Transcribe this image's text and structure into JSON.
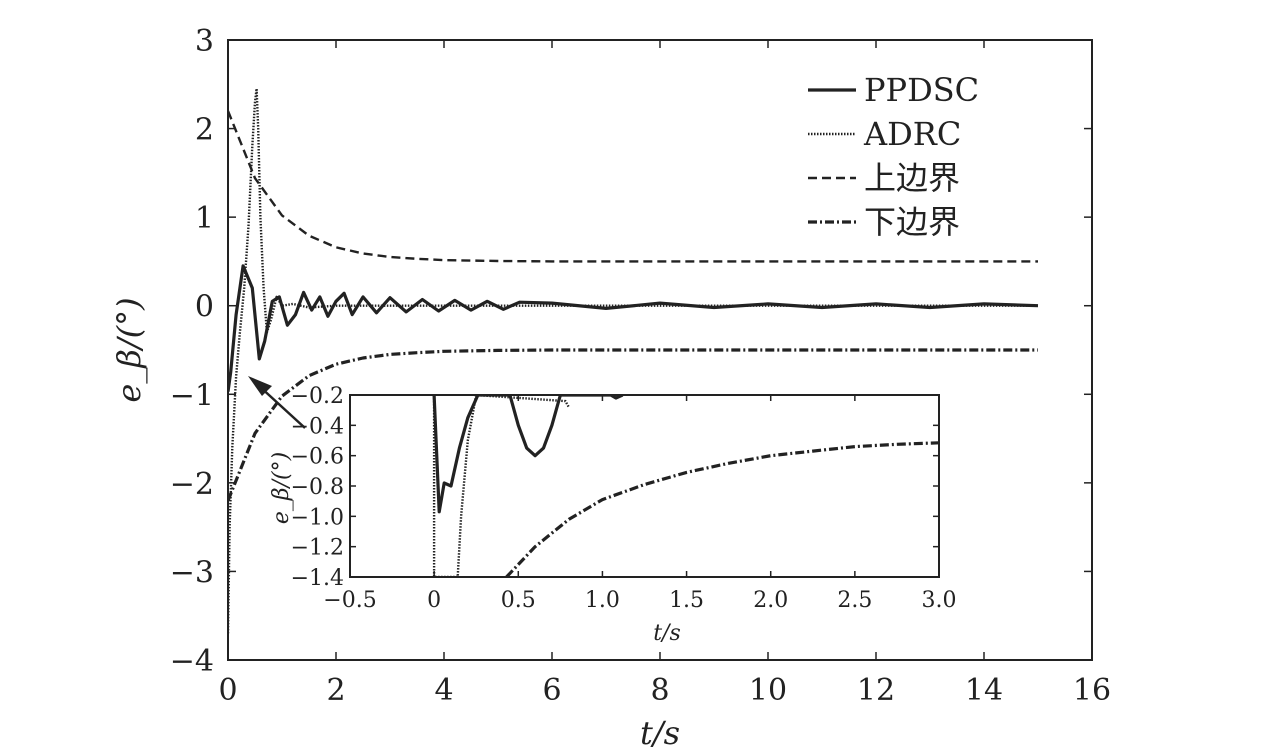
{
  "chart_data": [
    {
      "type": "line",
      "xlabel": "t/s",
      "ylabel": "e_β/(°)",
      "xlim": [
        0,
        16
      ],
      "ylim": [
        -4,
        3
      ],
      "xticks": [
        0,
        2,
        4,
        6,
        8,
        10,
        12,
        14,
        16
      ],
      "yticks": [
        -4,
        -3,
        -2,
        -1,
        0,
        1,
        2,
        3
      ],
      "xtick_labels": [
        "0",
        "2",
        "4",
        "6",
        "8",
        "10",
        "12",
        "14",
        "16"
      ],
      "ytick_labels": [
        "−4",
        "−3",
        "−2",
        "−1",
        "0",
        "1",
        "2",
        "3"
      ],
      "legend_position": "top-right",
      "series": [
        {
          "name": "PPDSC",
          "style": "solid",
          "x": [
            0,
            0.05,
            0.15,
            0.28,
            0.45,
            0.58,
            0.68,
            0.82,
            0.95,
            1.1,
            1.25,
            1.4,
            1.55,
            1.7,
            1.85,
            2.0,
            2.15,
            2.3,
            2.5,
            2.75,
            3.0,
            3.3,
            3.6,
            3.9,
            4.2,
            4.5,
            4.8,
            5.1,
            5.4,
            6,
            7,
            8,
            9,
            10,
            11,
            12,
            13,
            14,
            15
          ],
          "y": [
            -0.97,
            -0.75,
            -0.1,
            0.45,
            0.2,
            -0.6,
            -0.4,
            0.05,
            0.1,
            -0.22,
            -0.1,
            0.15,
            -0.05,
            0.1,
            -0.12,
            0.05,
            0.14,
            -0.1,
            0.1,
            -0.08,
            0.09,
            -0.07,
            0.07,
            -0.06,
            0.06,
            -0.05,
            0.05,
            -0.04,
            0.04,
            0.03,
            -0.03,
            0.03,
            -0.02,
            0.02,
            -0.02,
            0.02,
            -0.02,
            0.02,
            0.0
          ]
        },
        {
          "name": "ADRC",
          "style": "dotted",
          "x": [
            0,
            0.03,
            0.08,
            0.15,
            0.22,
            0.3,
            0.38,
            0.45,
            0.5,
            0.53,
            0.56,
            0.6,
            0.66,
            0.72,
            0.8,
            0.9,
            1.0,
            1.2,
            1.5,
            2,
            3,
            5,
            8,
            11,
            15
          ],
          "y": [
            -3.7,
            -2.5,
            -1.6,
            -0.8,
            -0.3,
            0.2,
            0.9,
            1.8,
            2.3,
            2.45,
            2.0,
            1.0,
            0.2,
            -0.3,
            -0.15,
            0.1,
            0.0,
            0.02,
            -0.02,
            0.0,
            0.0,
            0.0,
            0.0,
            0.0,
            0.0
          ]
        },
        {
          "name": "上边界",
          "style": "dashed",
          "x": [
            0,
            0.5,
            1,
            1.5,
            2,
            2.5,
            3,
            3.5,
            4,
            5,
            6,
            8,
            10,
            12,
            15
          ],
          "y": [
            2.2,
            1.44,
            1.02,
            0.79,
            0.66,
            0.59,
            0.55,
            0.53,
            0.515,
            0.505,
            0.5,
            0.5,
            0.5,
            0.5,
            0.5
          ]
        },
        {
          "name": "下边界",
          "style": "dashdot",
          "x": [
            0,
            0.5,
            1,
            1.5,
            2,
            2.5,
            3,
            3.5,
            4,
            5,
            6,
            8,
            10,
            12,
            15
          ],
          "y": [
            -2.2,
            -1.44,
            -1.02,
            -0.79,
            -0.66,
            -0.59,
            -0.55,
            -0.53,
            -0.515,
            -0.505,
            -0.5,
            -0.5,
            -0.5,
            -0.5,
            -0.5
          ]
        }
      ]
    },
    {
      "type": "line",
      "role": "inset",
      "xlabel": "t/s",
      "ylabel": "e_β/(°)",
      "xlim": [
        -0.5,
        3.0
      ],
      "ylim": [
        -1.4,
        -0.2
      ],
      "xticks": [
        -0.5,
        0,
        0.5,
        1.0,
        1.5,
        2.0,
        2.5,
        3.0
      ],
      "yticks": [
        -1.4,
        -1.2,
        -1.0,
        -0.8,
        -0.6,
        -0.4,
        -0.2
      ],
      "xtick_labels": [
        "−0.5",
        "0",
        "0.5",
        "1.0",
        "1.5",
        "2.0",
        "2.5",
        "3.0"
      ],
      "ytick_labels": [
        "−1.4",
        "−1.2",
        "−1.0",
        "−0.8",
        "−0.6",
        "−0.4",
        "−0.2"
      ],
      "series": [
        {
          "style": "solid",
          "x": [
            0,
            0.03,
            0.06,
            0.1,
            0.15,
            0.2,
            0.26,
            0.45,
            0.5,
            0.55,
            0.6,
            0.65,
            0.7,
            0.75,
            1.05,
            1.08,
            1.12
          ],
          "y": [
            -0.2,
            -0.97,
            -0.78,
            -0.8,
            -0.55,
            -0.35,
            -0.2,
            -0.2,
            -0.4,
            -0.55,
            -0.6,
            -0.55,
            -0.4,
            -0.2,
            -0.2,
            -0.22,
            -0.2
          ]
        },
        {
          "style": "dotted",
          "x": [
            0,
            0.0,
            0.14,
            0.16,
            0.2,
            0.25,
            0.78,
            0.8
          ],
          "y": [
            -0.2,
            -1.4,
            -1.4,
            -1.0,
            -0.5,
            -0.2,
            -0.24,
            -0.28
          ]
        },
        {
          "style": "dashdot",
          "x": [
            0.43,
            0.6,
            0.8,
            1.0,
            1.25,
            1.5,
            1.75,
            2.0,
            2.25,
            2.5,
            2.75,
            3.0
          ],
          "y": [
            -1.4,
            -1.2,
            -1.02,
            -0.89,
            -0.79,
            -0.71,
            -0.65,
            -0.6,
            -0.57,
            -0.54,
            -0.525,
            -0.515
          ]
        }
      ]
    }
  ]
}
